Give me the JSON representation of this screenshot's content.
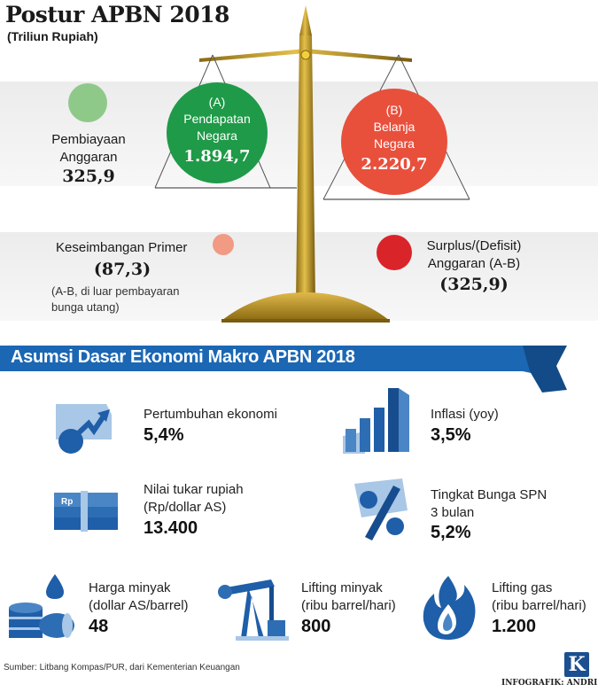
{
  "title": "Postur APBN 2018",
  "subtitle": "(Triliun Rupiah)",
  "balance": {
    "pembiayaan": {
      "label_line1": "Pembiayaan",
      "label_line2": "Anggaran",
      "value": "325,9",
      "color": "#8fc98a"
    },
    "pendapatan": {
      "tag": "(A)",
      "line1": "Pendapatan",
      "line2": "Negara",
      "value": "1.894,7",
      "color": "#1f9a48"
    },
    "belanja": {
      "tag": "(B)",
      "line1": "Belanja",
      "line2": "Negara",
      "value": "2.220,7",
      "color": "#e8503c"
    },
    "keseimbangan": {
      "label": "Keseimbangan Primer",
      "value": "(87,3)",
      "note_line1": "(A-B, di luar pembayaran",
      "note_line2": "bunga utang)",
      "color": "#f19a84"
    },
    "surplus": {
      "label_line1": "Surplus/(Defisit)",
      "label_line2": "Anggaran (A-B)",
      "value": "(325,9)",
      "color": "#d9242a"
    }
  },
  "section": {
    "title": "Asumsi Dasar Ekonomi Makro APBN 2018",
    "color": "#1b67b4"
  },
  "assumptions": {
    "pertumbuhan": {
      "label": "Pertumbuhan ekonomi",
      "value": "5,4%",
      "icon": "growth-chart-icon"
    },
    "inflasi": {
      "label": "Inflasi (yoy)",
      "value": "3,5%",
      "icon": "bar-chart-icon"
    },
    "kurs": {
      "label_line1": "Nilai tukar rupiah",
      "label_line2": "(Rp/dollar AS)",
      "value": "13.400",
      "icon": "money-stack-icon",
      "money_text": "Rp"
    },
    "spn": {
      "label_line1": "Tingkat Bunga SPN",
      "label_line2": "3 bulan",
      "value": "5,2%",
      "icon": "percent-icon"
    },
    "minyak": {
      "label_line1": "Harga minyak",
      "label_line2": "(dollar AS/barrel)",
      "value": "48",
      "icon": "oil-barrel-icon"
    },
    "lifting_minyak": {
      "label_line1": "Lifting minyak",
      "label_line2": "(ribu barrel/hari)",
      "value": "800",
      "icon": "oil-pump-icon"
    },
    "lifting_gas": {
      "label_line1": "Lifting gas",
      "label_line2": "(ribu barrel/hari)",
      "value": "1.200",
      "icon": "gas-flame-icon"
    }
  },
  "footer": {
    "source": "Sumber: Litbang Kompas/PUR, dari Kementerian Keuangan",
    "credit": "INFOGRAFIK: ANDRI",
    "logo": "K"
  }
}
